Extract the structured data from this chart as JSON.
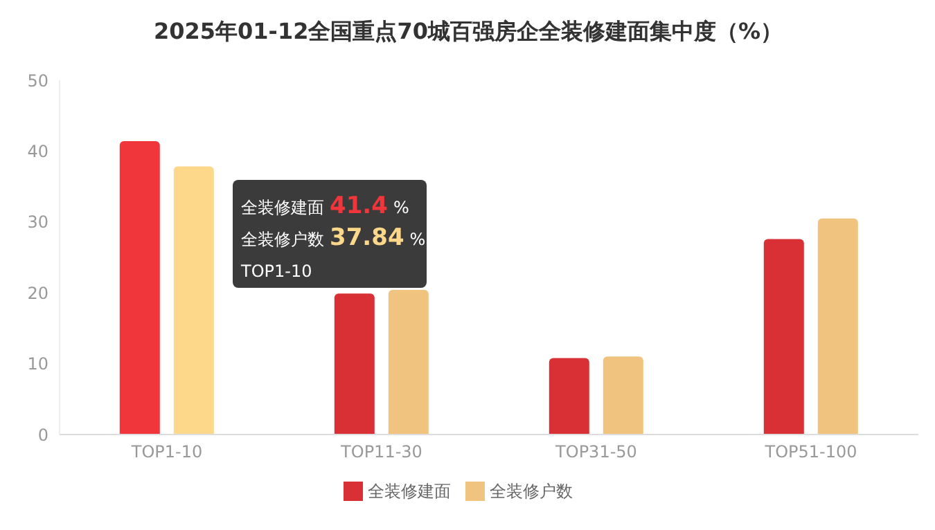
{
  "chart_data": {
    "type": "bar",
    "title": "2025年01-12全国重点70城百强房企全装修建面集中度（%）",
    "categories": [
      "TOP1-10",
      "TOP11-30",
      "TOP31-50",
      "TOP51-100"
    ],
    "series": [
      {
        "name": "全装修建面",
        "color": "#d93035",
        "colors": [
          "#f0353b",
          "#d93035",
          "#d93035",
          "#d93035"
        ],
        "values": [
          41.4,
          19.9,
          10.8,
          27.6
        ]
      },
      {
        "name": "全装修户数",
        "color": "#f0c47e",
        "colors": [
          "#fdd78a",
          "#f0c47e",
          "#f0c47e",
          "#f0c47e"
        ],
        "values": [
          37.84,
          20.4,
          11.0,
          30.5
        ]
      }
    ],
    "ylim": [
      0,
      50
    ],
    "yticks": [
      0,
      10,
      20,
      30,
      40,
      50
    ],
    "grid": false,
    "legend": "bottom",
    "annotations": [
      "全装修建面 41.4 %",
      "全装修户数 37.84 %",
      "TOP1-10"
    ]
  }
}
